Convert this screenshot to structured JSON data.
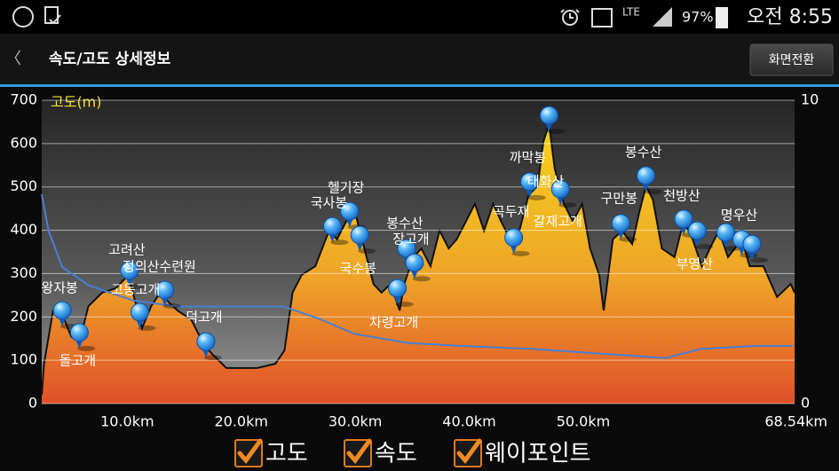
{
  "status_bar": {
    "network": "LTE",
    "battery": "97%",
    "time": "오전 8:55"
  },
  "header": {
    "back": "〈",
    "title": "속도/고도 상세정보",
    "button": "화면전환"
  },
  "chart_data": {
    "type": "line",
    "ylabel": "고도(m)",
    "xlim": [
      2.5,
      68.54
    ],
    "xticks": [
      {
        "value": 10,
        "label": "10.0km"
      },
      {
        "value": 20,
        "label": "20.0km"
      },
      {
        "value": 30,
        "label": "30.0km"
      },
      {
        "value": 40,
        "label": "40.0km"
      },
      {
        "value": 50,
        "label": "50.0km"
      },
      {
        "value": 68.54,
        "label": "68.54km"
      }
    ],
    "ylim": [
      0,
      700
    ],
    "yticks": [
      0,
      100,
      200,
      300,
      400,
      500,
      600,
      700
    ],
    "y2lim": [
      0,
      10
    ],
    "y2ticks": [
      0,
      10
    ],
    "grid": true,
    "series": [
      {
        "name": "고도",
        "color": "#f0b020",
        "x": [
          2.5,
          2.7,
          3.5,
          4.3,
          5.1,
          5.8,
          6.6,
          7.8,
          9.0,
          10.1,
          10.9,
          11.3,
          12.1,
          12.9,
          13.6,
          14.4,
          15.6,
          16.8,
          17.5,
          18.7,
          19.9,
          21.4,
          23.0,
          23.8,
          24.5,
          25.3,
          26.5,
          27.7,
          28.4,
          29.2,
          30.0,
          30.8,
          31.6,
          32.3,
          33.1,
          33.9,
          34.3,
          35.1,
          35.8,
          36.6,
          37.4,
          38.2,
          38.9,
          39.7,
          40.5,
          41.3,
          42.1,
          42.8,
          44.0,
          45.2,
          46.0,
          46.5,
          47.0,
          47.5,
          48.3,
          49.1,
          49.9,
          50.6,
          51.4,
          51.8,
          52.6,
          53.4,
          54.3,
          54.9,
          55.5,
          56.1,
          56.9,
          58.0,
          58.8,
          59.6,
          60.4,
          61.1,
          61.9,
          62.7,
          63.9,
          64.6,
          65.8,
          67.0,
          68.2,
          68.54
        ],
        "values": [
          20,
          92,
          215,
          205,
          154,
          143,
          225,
          256,
          266,
          297,
          215,
          174,
          225,
          256,
          235,
          215,
          194,
          133,
          113,
          82,
          82,
          82,
          92,
          123,
          256,
          297,
          317,
          399,
          379,
          420,
          440,
          358,
          276,
          256,
          276,
          215,
          276,
          338,
          358,
          317,
          399,
          358,
          379,
          420,
          461,
          399,
          461,
          420,
          358,
          481,
          502,
          604,
          645,
          542,
          461,
          420,
          461,
          358,
          297,
          215,
          379,
          399,
          368,
          440,
          502,
          471,
          358,
          338,
          420,
          379,
          317,
          358,
          399,
          338,
          379,
          317,
          317,
          246,
          276,
          256
        ]
      },
      {
        "name": "속도",
        "color": "#4a7fd4",
        "axis": "y2",
        "x": [
          2.5,
          3.1,
          4.3,
          6.6,
          10.5,
          14.4,
          18.3,
          23.7,
          26.8,
          29.9,
          34.6,
          39.3,
          45.5,
          53.3,
          57.2,
          60.3,
          65.0,
          68.4
        ],
        "values": [
          6.9,
          5.7,
          4.5,
          3.9,
          3.4,
          3.2,
          3.2,
          3.2,
          2.8,
          2.3,
          2.0,
          1.9,
          1.8,
          1.6,
          1.5,
          1.8,
          1.9,
          1.9
        ]
      },
      {
        "name": "웨이포인트",
        "color": "#2a8fe8",
        "x": [
          4.3,
          5.8,
          10.2,
          11.1,
          13.3,
          16.9,
          28.0,
          29.5,
          30.4,
          33.7,
          34.5,
          35.2,
          43.9,
          47.0,
          45.3,
          48.0,
          53.3,
          55.5,
          58.8,
          60.0,
          62.5,
          63.9,
          64.8
        ],
        "values": [
          215,
          164,
          307,
          211,
          262,
          143,
          409,
          444,
          389,
          266,
          358,
          325,
          383,
          665,
          512,
          495,
          416,
          526,
          426,
          399,
          395,
          379,
          368
        ],
        "labels": [
          "왕자봉",
          "돌고개",
          "고려산",
          "정의산수련원",
          "고동고개",
          "덕고개",
          "국사봉",
          "헬기장",
          "국수봉",
          "차령고개",
          "봉수산",
          "장고개",
          "곡두재",
          "까막봉",
          "태화산",
          "갈재고개",
          "구만봉",
          "봉수산",
          "천방산",
          "부영산",
          "명우산",
          null,
          null
        ]
      }
    ]
  }
}
